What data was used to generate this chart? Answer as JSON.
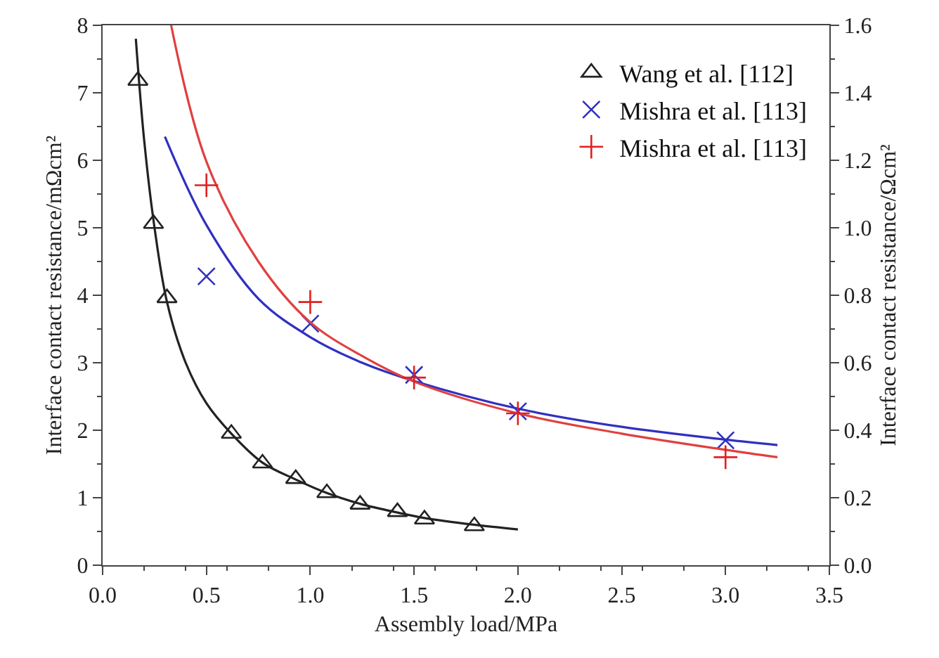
{
  "chart_data": {
    "type": "scatter",
    "xlabel": "Assembly load/MPa",
    "ylabel": "Interface contact resistance/mΩcm²",
    "y2label": "Interface contact resistance/Ωcm²",
    "xlim": [
      0,
      3.5
    ],
    "xticks": [
      {
        "value": 0,
        "label": "0.0"
      },
      0.5,
      {
        "value": 1,
        "label": "1.0"
      },
      1.5,
      {
        "value": 2,
        "label": "2.0"
      },
      2.5,
      {
        "value": 3,
        "label": "3.0"
      },
      3.5
    ],
    "ylim": [
      0,
      8
    ],
    "yticks": [
      0,
      1,
      2,
      3,
      4,
      5,
      6,
      7,
      8
    ],
    "y2lim": [
      0,
      1.6
    ],
    "y2ticks": [
      {
        "value": 0,
        "label": "0.0"
      },
      0.2,
      0.4,
      0.6,
      0.8,
      {
        "value": 1,
        "label": "1.0"
      },
      1.2,
      1.4,
      1.6
    ],
    "legend": "top right",
    "series": [
      {
        "type": "line",
        "marker": "none",
        "color": "#222222",
        "x": [
          0.16,
          0.2,
          0.25,
          0.31,
          0.4,
          0.5,
          0.62,
          0.77,
          0.93,
          1.08,
          1.24,
          1.42,
          1.55,
          1.79,
          2.0
        ],
        "values": [
          7.8,
          6.3,
          5.0,
          3.9,
          3.0,
          2.4,
          1.95,
          1.52,
          1.27,
          1.07,
          0.91,
          0.78,
          0.7,
          0.6,
          0.53
        ]
      },
      {
        "type": "line",
        "marker": "none",
        "color": "#3030c0",
        "x": [
          0.3,
          0.5,
          0.75,
          1.0,
          1.25,
          1.5,
          2.0,
          2.5,
          3.0,
          3.25
        ],
        "values": [
          6.35,
          5.04,
          3.95,
          3.38,
          3.0,
          2.73,
          2.32,
          2.05,
          1.86,
          1.78
        ]
      },
      {
        "type": "line",
        "marker": "none",
        "color": "#e04040",
        "axis": "y2",
        "x": [
          0.33,
          0.5,
          0.75,
          1.0,
          1.25,
          1.5,
          2.0,
          2.5,
          3.0,
          3.25
        ],
        "values": [
          1.6,
          1.196,
          0.9,
          0.72,
          0.62,
          0.544,
          0.45,
          0.39,
          0.342,
          0.32
        ]
      },
      {
        "name": "Wang et al. [112]",
        "marker": "triangle",
        "color": "#222222",
        "x": [
          0.17,
          0.245,
          0.31,
          0.62,
          0.77,
          0.93,
          1.08,
          1.24,
          1.42,
          1.55,
          1.79
        ],
        "values": [
          7.18,
          5.06,
          3.96,
          1.95,
          1.51,
          1.28,
          1.07,
          0.9,
          0.79,
          0.68,
          0.58
        ]
      },
      {
        "name": "Mishra et al. [113]",
        "marker": "x",
        "color": "#3030c0",
        "x": [
          0.5,
          1.0,
          1.5,
          2.0,
          3.0
        ],
        "values": [
          4.28,
          3.58,
          2.82,
          2.28,
          1.85
        ]
      },
      {
        "name": "Mishra et al. [113]",
        "marker": "cross",
        "color": "#e02020",
        "axis": "y2",
        "x": [
          0.5,
          1.0,
          1.5,
          2.0,
          3.0
        ],
        "values": [
          1.126,
          0.78,
          0.556,
          0.45,
          0.32
        ]
      }
    ]
  }
}
